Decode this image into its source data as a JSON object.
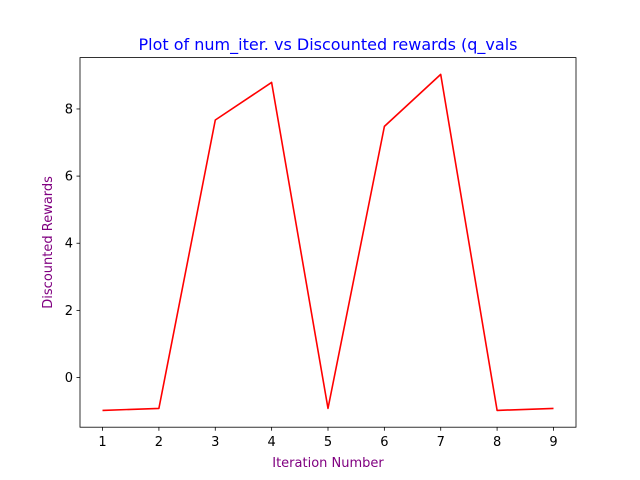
{
  "chart_data": {
    "type": "line",
    "title": "Plot of num_iter. vs Discounted rewards (q_vals",
    "xlabel": "Iteration Number",
    "ylabel": "Discounted Rewards",
    "x": [
      1,
      2,
      3,
      4,
      5,
      6,
      7,
      8,
      9
    ],
    "series": [
      {
        "values": [
          -0.98,
          -0.92,
          7.67,
          8.79,
          -0.92,
          7.48,
          9.03,
          -0.98,
          -0.92
        ]
      }
    ],
    "xticks": [
      1,
      2,
      3,
      4,
      5,
      6,
      7,
      8,
      9
    ],
    "yticks": [
      0,
      2,
      4,
      6,
      8
    ],
    "xlim": [
      0.6,
      9.4
    ],
    "ylim": [
      -1.48,
      9.53
    ],
    "grid": false,
    "colors": {
      "line": "#ff0000",
      "title": "#0000ff",
      "axis_labels": "#800080"
    }
  }
}
